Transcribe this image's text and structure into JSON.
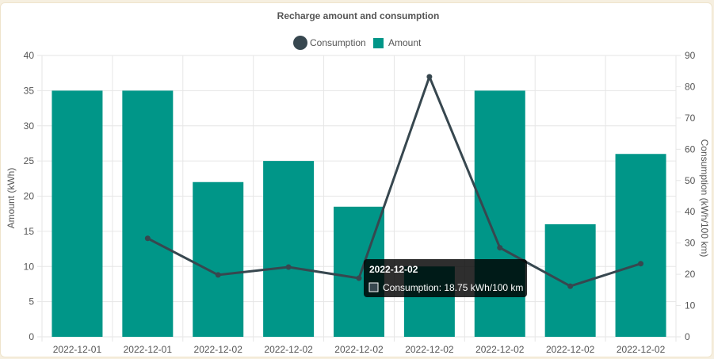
{
  "chart_data": {
    "type": "bar",
    "title": "Recharge amount and consumption",
    "categories": [
      "2022-12-01",
      "2022-12-01",
      "2022-12-02",
      "2022-12-02",
      "2022-12-02",
      "2022-12-02",
      "2022-12-02",
      "2022-12-02",
      "2022-12-02"
    ],
    "series": [
      {
        "name": "Amount",
        "type": "bar",
        "axis": "left",
        "color": "#009688",
        "values": [
          35,
          35,
          22,
          25,
          18.5,
          10,
          35,
          16,
          26
        ]
      },
      {
        "name": "Consumption",
        "type": "line",
        "axis": "right",
        "color": "#37474f",
        "values": [
          null,
          31.5,
          19.8,
          22.3,
          18.75,
          83.2,
          28.5,
          16.2,
          23.4
        ]
      }
    ],
    "y_left": {
      "label": "Amount (kWh)",
      "min": 0,
      "max": 40,
      "step": 5
    },
    "y_right": {
      "label": "Consumption (kWh/100 km)",
      "min": 0,
      "max": 90,
      "step": 10
    },
    "legend_position": "top-center",
    "grid": true,
    "tooltip": {
      "title": "2022-12-02",
      "label": "Consumption: 18.75 kWh/100 km",
      "index": 4
    }
  }
}
